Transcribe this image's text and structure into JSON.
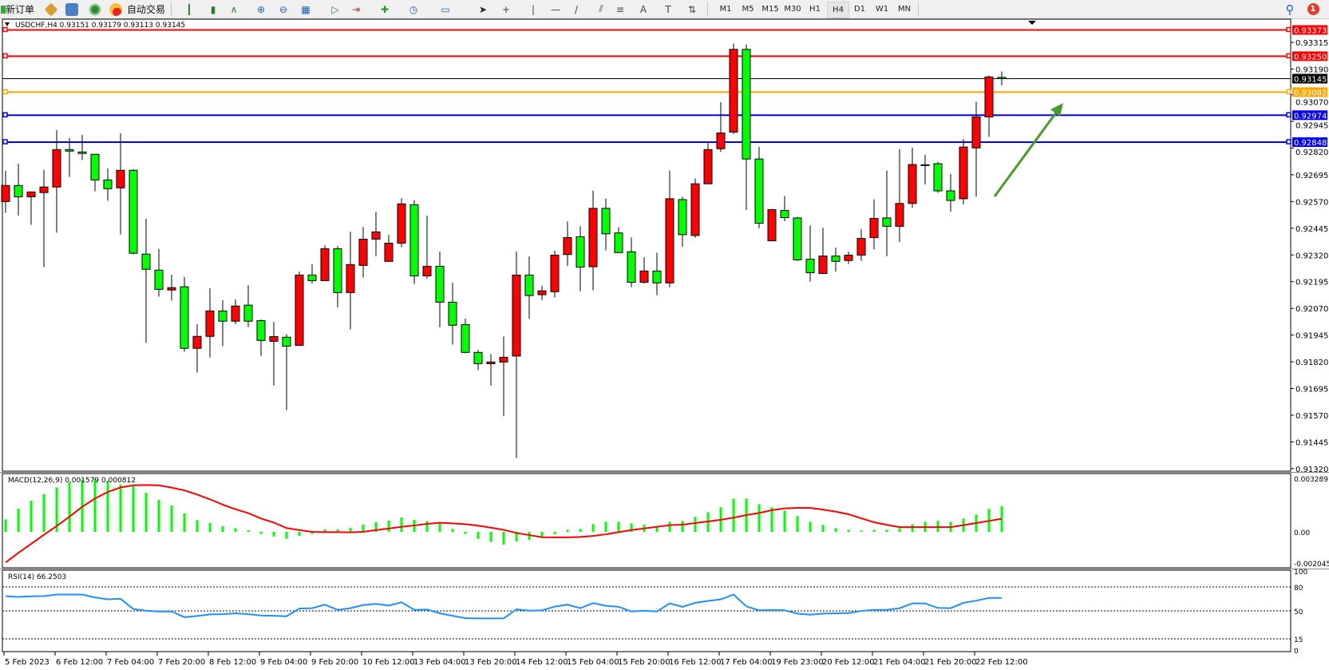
{
  "toolbar": {
    "new_order": "新订单",
    "auto_trading": "自动交易",
    "icons": [
      "market-watch-icon",
      "data-window-icon",
      "navigator-icon",
      "terminal-icon",
      "bar-chart-icon",
      "candlestick-icon",
      "line-chart-icon",
      "zoom-in-icon",
      "zoom-out-icon",
      "tile-windows-icon",
      "chart-shift-icon",
      "autoscroll-icon",
      "indicators-icon",
      "periods-icon",
      "templates-icon",
      "cursor-icon",
      "crosshair-icon",
      "vertical-line-icon",
      "horizontal-line-icon",
      "trendline-icon",
      "equidistant-channel-icon",
      "fibonacci-icon",
      "text-icon",
      "text-label-icon",
      "arrows-icon"
    ],
    "timeframes": [
      "M1",
      "M5",
      "M15",
      "M30",
      "H1",
      "H4",
      "D1",
      "W1",
      "MN"
    ],
    "active_timeframe": "H4",
    "notification_count": "1",
    "text_tool": "A",
    "label_tool": "T"
  },
  "chart": {
    "header": "USDCHF,H4  0.93151 0.93179 0.93113 0.93145",
    "colors": {
      "up": "#ff0000",
      "down": "#00ff00",
      "bid_line": "#000000",
      "arrow": "#4c9a2a",
      "macd_hist": "#00ff00",
      "macd_signal": "#ff0000",
      "rsi": "#1e90ff"
    }
  },
  "chart_data": [
    {
      "type": "candlestick",
      "title": "USDCHF,H4",
      "ylim": [
        0.9132,
        0.93373
      ],
      "price_ticks": [
        "0.93315",
        "0.93190",
        "0.93070",
        "0.92945",
        "0.92820",
        "0.92695",
        "0.92570",
        "0.92445",
        "0.92320",
        "0.92195",
        "0.92070",
        "0.91945",
        "0.91820",
        "0.91695",
        "0.91570",
        "0.91445",
        "0.91320"
      ],
      "time_labels": [
        "5 Feb 2023",
        "6 Feb 12:00",
        "7 Feb 04:00",
        "7 Feb 20:00",
        "8 Feb 12:00",
        "9 Feb 04:00",
        "9 Feb 20:00",
        "10 Feb 12:00",
        "13 Feb 04:00",
        "13 Feb 20:00",
        "14 Feb 12:00",
        "15 Feb 04:00",
        "15 Feb 20:00",
        "16 Feb 12:00",
        "17 Feb 04:00",
        "19 Feb 23:00",
        "20 Feb 12:00",
        "21 Feb 04:00",
        "21 Feb 20:00",
        "22 Feb 12:00"
      ],
      "hlines": [
        {
          "price": "0.93373",
          "color": "#ff0000"
        },
        {
          "price": "0.93250",
          "color": "#ff0000"
        },
        {
          "price": "0.93145",
          "color": "#000000"
        },
        {
          "price": "0.93082",
          "color": "#ffa500"
        },
        {
          "price": "0.92974",
          "color": "#0000ff"
        },
        {
          "price": "0.92848",
          "color": "#0000ff"
        }
      ],
      "ohlc": [
        [
          0.9257,
          0.92714,
          0.92517,
          0.92645
        ],
        [
          0.92645,
          0.92747,
          0.92504,
          0.92592
        ],
        [
          0.92592,
          0.92615,
          0.92461,
          0.92615
        ],
        [
          0.92612,
          0.92718,
          0.92263,
          0.92638
        ],
        [
          0.92638,
          0.92904,
          0.92424,
          0.92813
        ],
        [
          0.92813,
          0.92867,
          0.92685,
          0.92806
        ],
        [
          0.92802,
          0.92882,
          0.92764,
          0.92795
        ],
        [
          0.92791,
          0.92791,
          0.92618,
          0.92671
        ],
        [
          0.92671,
          0.92725,
          0.92573,
          0.9263
        ],
        [
          0.92634,
          0.92889,
          0.92416,
          0.92716
        ],
        [
          0.92716,
          0.92721,
          0.92323,
          0.92328
        ],
        [
          0.92324,
          0.9249,
          0.91909,
          0.92253
        ],
        [
          0.92249,
          0.92348,
          0.92125,
          0.92159
        ],
        [
          0.92156,
          0.92228,
          0.92106,
          0.92167
        ],
        [
          0.92171,
          0.92217,
          0.91867,
          0.91883
        ],
        [
          0.91883,
          0.91996,
          0.9177,
          0.91939
        ],
        [
          0.91939,
          0.92164,
          0.9184,
          0.92058
        ],
        [
          0.92058,
          0.92108,
          0.91893,
          0.9201
        ],
        [
          0.9201,
          0.92112,
          0.91997,
          0.92081
        ],
        [
          0.92085,
          0.92179,
          0.91983,
          0.9201
        ],
        [
          0.92013,
          0.92018,
          0.91847,
          0.9192
        ],
        [
          0.91916,
          0.92007,
          0.91709,
          0.91938
        ],
        [
          0.91935,
          0.91949,
          0.91593,
          0.91893
        ],
        [
          0.91897,
          0.92242,
          0.91893,
          0.92226
        ],
        [
          0.92226,
          0.92276,
          0.92187,
          0.922
        ],
        [
          0.922,
          0.92365,
          0.922,
          0.92349
        ],
        [
          0.92349,
          0.92362,
          0.92075,
          0.92144
        ],
        [
          0.92144,
          0.92429,
          0.91971,
          0.92275
        ],
        [
          0.92271,
          0.92451,
          0.92214,
          0.92394
        ],
        [
          0.92394,
          0.92522,
          0.92314,
          0.92428
        ],
        [
          0.9229,
          0.92414,
          0.9229,
          0.92375
        ],
        [
          0.92375,
          0.92586,
          0.92357,
          0.92559
        ],
        [
          0.92555,
          0.92575,
          0.92184,
          0.92222
        ],
        [
          0.92222,
          0.92504,
          0.9221,
          0.92267
        ],
        [
          0.92267,
          0.92336,
          0.91982,
          0.92099
        ],
        [
          0.92099,
          0.9219,
          0.919,
          0.91991
        ],
        [
          0.91994,
          0.92022,
          0.9186,
          0.91864
        ],
        [
          0.91864,
          0.91875,
          0.91781,
          0.91811
        ],
        [
          0.91811,
          0.91856,
          0.91709,
          0.91819
        ],
        [
          0.91819,
          0.91939,
          0.91567,
          0.91841
        ],
        [
          0.91847,
          0.92336,
          0.91371,
          0.92226
        ],
        [
          0.92226,
          0.92313,
          0.92021,
          0.9213
        ],
        [
          0.92134,
          0.92176,
          0.92107,
          0.92152
        ],
        [
          0.92148,
          0.9234,
          0.92121,
          0.92319
        ],
        [
          0.92322,
          0.92477,
          0.92268,
          0.92401
        ],
        [
          0.92405,
          0.92454,
          0.9215,
          0.92263
        ],
        [
          0.92265,
          0.92621,
          0.92154,
          0.92538
        ],
        [
          0.92538,
          0.92584,
          0.92341,
          0.92419
        ],
        [
          0.92423,
          0.9245,
          0.92331,
          0.92331
        ],
        [
          0.92335,
          0.92402,
          0.92169,
          0.92192
        ],
        [
          0.92192,
          0.92309,
          0.92185,
          0.92245
        ],
        [
          0.92245,
          0.92331,
          0.92132,
          0.92189
        ],
        [
          0.92189,
          0.92715,
          0.92169,
          0.92583
        ],
        [
          0.92579,
          0.92592,
          0.92359,
          0.92415
        ],
        [
          0.92411,
          0.92678,
          0.924,
          0.92653
        ],
        [
          0.92653,
          0.92843,
          0.92653,
          0.92813
        ],
        [
          0.92817,
          0.93035,
          0.92802,
          0.92891
        ],
        [
          0.92895,
          0.93309,
          0.92886,
          0.93282
        ],
        [
          0.93282,
          0.93305,
          0.9253,
          0.92769
        ],
        [
          0.92769,
          0.92826,
          0.92445,
          0.92468
        ],
        [
          0.92386,
          0.92536,
          0.92386,
          0.92532
        ],
        [
          0.92528,
          0.92596,
          0.92478,
          0.92495
        ],
        [
          0.92493,
          0.92498,
          0.92292,
          0.92297
        ],
        [
          0.923,
          0.92458,
          0.92195,
          0.92237
        ],
        [
          0.92233,
          0.92447,
          0.92233,
          0.92315
        ],
        [
          0.92315,
          0.92354,
          0.92242,
          0.9229
        ],
        [
          0.92294,
          0.92336,
          0.92277,
          0.92319
        ],
        [
          0.92319,
          0.9244,
          0.92292,
          0.92397
        ],
        [
          0.92401,
          0.9258,
          0.92346,
          0.92491
        ],
        [
          0.92493,
          0.92715,
          0.92314,
          0.92454
        ],
        [
          0.92454,
          0.92815,
          0.92381,
          0.92561
        ],
        [
          0.92561,
          0.92822,
          0.92541,
          0.92743
        ],
        [
          0.92742,
          0.92789,
          0.9265,
          0.92742
        ],
        [
          0.92747,
          0.92756,
          0.92611,
          0.9262
        ],
        [
          0.9262,
          0.927,
          0.92523,
          0.92575
        ],
        [
          0.92583,
          0.92863,
          0.92556,
          0.92825
        ],
        [
          0.92821,
          0.93037,
          0.92593,
          0.92966
        ],
        [
          0.92966,
          0.9316,
          0.92872,
          0.93153
        ],
        [
          0.93151,
          0.93179,
          0.93113,
          0.93145
        ]
      ]
    },
    {
      "type": "bar+line",
      "title": "MACD(12,26,9) 0.001579 0.000812",
      "ylim": [
        -0.002045,
        0.003289
      ],
      "y_ticks": [
        "0.003289",
        "0.00",
        "-0.002045"
      ],
      "histogram": [
        0.00077,
        0.00142,
        0.00191,
        0.00231,
        0.00273,
        0.00306,
        0.00322,
        0.00327,
        0.00314,
        0.0029,
        0.00281,
        0.0024,
        0.00196,
        0.00162,
        0.00113,
        0.00072,
        0.00054,
        0.00034,
        0.00023,
        0.0001,
        -0.00013,
        -0.00029,
        -0.00043,
        -0.00025,
        -0.00013,
        0.00015,
        0.00015,
        0.00025,
        0.00044,
        0.00059,
        0.00069,
        0.00088,
        0.00074,
        0.00067,
        0.00052,
        0.00018,
        -0.00013,
        -0.00043,
        -0.00062,
        -0.00078,
        -0.00059,
        -0.00051,
        -0.00031,
        -0.00015,
        0.00013,
        0.00018,
        0.00047,
        0.00062,
        0.00062,
        0.00052,
        0.00043,
        0.00036,
        0.00062,
        0.00067,
        0.00092,
        0.00121,
        0.00151,
        0.00205,
        0.00205,
        0.0017,
        0.00151,
        0.00131,
        0.00097,
        0.00062,
        0.00043,
        0.00023,
        0.00013,
        8e-05,
        0.00013,
        0.00013,
        0.00023,
        0.00047,
        0.00062,
        0.00067,
        0.00062,
        0.00082,
        0.00106,
        0.00141,
        0.001579
      ],
      "signal": [
        -0.00188,
        -0.00129,
        -0.00074,
        -0.00018,
        0.00036,
        0.00093,
        0.00154,
        0.00205,
        0.00245,
        0.00273,
        0.00286,
        0.00288,
        0.00286,
        0.00272,
        0.00255,
        0.00229,
        0.002,
        0.00167,
        0.00139,
        0.00115,
        0.00082,
        0.00057,
        0.00023,
        0.00011,
        0.0,
        -2e-05,
        -2e-05,
        -3e-05,
        0.0,
        0.00011,
        0.0002,
        0.00031,
        0.00039,
        0.00049,
        0.00056,
        0.00052,
        0.00047,
        0.00038,
        0.00026,
        0.00012,
        -7e-05,
        -0.0002,
        -0.00033,
        -0.00034,
        -0.00034,
        -0.00031,
        -0.00025,
        -0.00015,
        -2e-05,
        0.00011,
        0.00021,
        0.00031,
        0.00041,
        0.00044,
        0.00054,
        0.00064,
        0.00074,
        0.00087,
        0.00103,
        0.00116,
        0.00133,
        0.00144,
        0.00147,
        0.00147,
        0.00137,
        0.00124,
        0.00108,
        0.00083,
        0.00059,
        0.00043,
        0.00029,
        0.00029,
        0.00029,
        0.00029,
        0.00029,
        0.00041,
        0.00054,
        0.00067,
        0.000812
      ]
    },
    {
      "type": "line",
      "title": "RSI(14) 66.2503",
      "ylim": [
        0,
        100
      ],
      "y_ticks": [
        "100",
        "80",
        "50",
        "15",
        "0"
      ],
      "levels": [
        80,
        50,
        15
      ],
      "values": [
        68.5,
        67.5,
        68.2,
        68.5,
        70.5,
        70.5,
        70.5,
        66.9,
        64.5,
        65.2,
        52.4,
        50.3,
        49.3,
        49.3,
        42.2,
        43.6,
        45.6,
        45.9,
        47.0,
        45.9,
        44.3,
        43.9,
        43.3,
        53.0,
        53.4,
        57.8,
        51.3,
        53.4,
        57.4,
        58.8,
        56.7,
        60.8,
        51.3,
        51.7,
        47.0,
        43.9,
        40.9,
        40.6,
        40.6,
        40.6,
        52.0,
        50.3,
        50.7,
        55.4,
        57.8,
        53.4,
        59.8,
        56.4,
        55.1,
        49.3,
        50.3,
        49.3,
        59.4,
        55.1,
        60.1,
        62.5,
        64.5,
        70.5,
        55.7,
        50.7,
        51.3,
        50.7,
        46.6,
        45.3,
        46.6,
        47.0,
        47.3,
        50.0,
        51.3,
        51.3,
        53.4,
        59.4,
        59.4,
        53.7,
        53.4,
        60.1,
        62.8,
        66.2,
        66.2503
      ]
    }
  ]
}
